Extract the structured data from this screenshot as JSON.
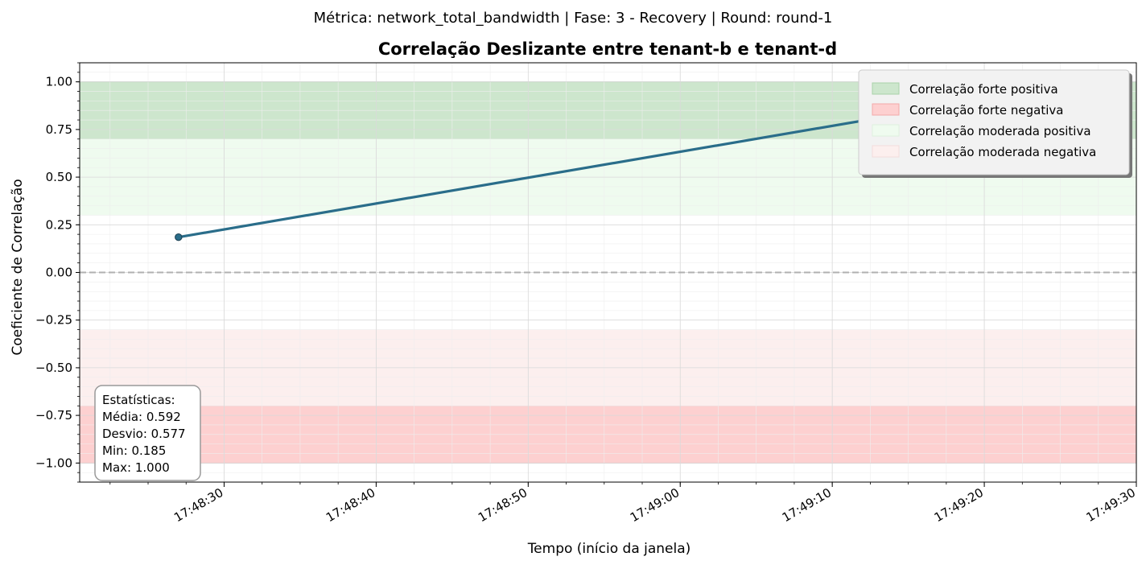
{
  "suptitle": "Métrica: network_total_bandwidth | Fase: 3 - Recovery | Round: round-1",
  "chart_data": {
    "type": "line",
    "title": "Correlação Deslizante entre tenant-b e tenant-d",
    "xlabel": "Tempo (início da janela)",
    "ylabel": "Coeficiente de Correlação",
    "x_ticks": [
      "17:48:30",
      "17:48:40",
      "17:48:50",
      "17:49:00",
      "17:49:10",
      "17:49:20",
      "17:49:30"
    ],
    "y_ticks": [
      "1.00",
      "0.75",
      "0.50",
      "0.25",
      "0.00",
      "−0.25",
      "−0.50",
      "−0.75",
      "−1.00"
    ],
    "ylim": [
      -1.1,
      1.1
    ],
    "grid": true,
    "series": [
      {
        "x": [
          "17:48:27",
          "17:49:27"
        ],
        "y": [
          0.185,
          1.0
        ],
        "color": "#2a6d8a"
      }
    ],
    "reference_line": {
      "y": 0.0,
      "style": "dashed",
      "color": "#b0b0b0"
    },
    "bands": [
      {
        "label": "Correlação forte positiva",
        "from": 0.7,
        "to": 1.0,
        "color": "#cde6cd"
      },
      {
        "label": "Correlação forte negativa",
        "from": -1.0,
        "to": -0.7,
        "color": "#fdd0d0"
      },
      {
        "label": "Correlação moderada positiva",
        "from": 0.3,
        "to": 0.7,
        "color": "#effbef"
      },
      {
        "label": "Correlação moderada negativa",
        "from": -0.7,
        "to": -0.3,
        "color": "#fcefee"
      }
    ],
    "legend_position": "top-right",
    "stats": {
      "header": "Estatísticas:",
      "mean": "Média: 0.592",
      "std": "Desvio: 0.577",
      "min": "Min: 0.185",
      "max": "Max: 1.000"
    }
  }
}
